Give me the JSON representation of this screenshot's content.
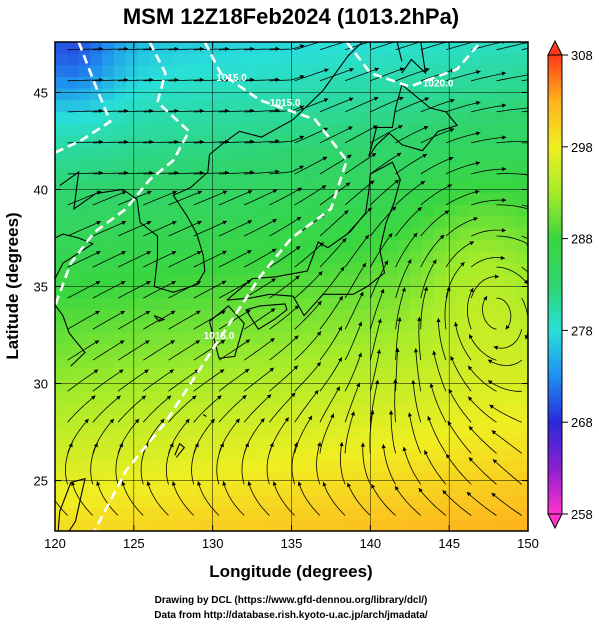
{
  "header": {
    "title": "MSM 12Z18Feb2024 (1013.2hPa)"
  },
  "footer": {
    "credit_line1": "Drawing by DCL (https://www.gfd-dennou.org/library/dcl/)",
    "credit_line2": "Data from http://database.rish.kyoto-u.ac.jp/arch/jmadata/"
  },
  "colors": {
    "contour": "#ffffff",
    "streamline": "#000000",
    "coastline": "#000000",
    "palette": [
      "#ff33cc",
      "#8a1fd0",
      "#2a2ad8",
      "#1f8ef0",
      "#29e0d8",
      "#2fd46e",
      "#3ad640",
      "#a4ec2a",
      "#f0ee22",
      "#ffb21e",
      "#ff3a18"
    ]
  },
  "chart_data": {
    "type": "heatmap",
    "title": "MSM 12Z18Feb2024 (1013.2hPa)",
    "xlabel": "Longitude (degrees)",
    "ylabel": "Latitude  (degrees)",
    "xlim": [
      120,
      150
    ],
    "ylim": [
      22.4,
      47.6
    ],
    "x_ticks": [
      120,
      125,
      130,
      135,
      140,
      145,
      150
    ],
    "x_tick_labels": [
      "120",
      "125",
      "130",
      "135",
      "140",
      "145",
      "150"
    ],
    "y_ticks": [
      25,
      30,
      35,
      40,
      45
    ],
    "y_tick_labels": [
      "25",
      "30",
      "35",
      "40",
      "45"
    ],
    "grid": true,
    "colorbar": {
      "range": [
        258,
        308
      ],
      "ticks": [
        258,
        268,
        278,
        288,
        298,
        308
      ],
      "tick_labels": [
        "258",
        "268",
        "278",
        "288",
        "298",
        "308"
      ],
      "placement": "right"
    },
    "contour_labels": [
      {
        "text": "1015.0",
        "lon": 131.2,
        "lat": 45.6
      },
      {
        "text": "1015.0",
        "lon": 134.6,
        "lat": 44.3
      },
      {
        "text": "1020.0",
        "lon": 144.3,
        "lat": 45.3
      },
      {
        "text": "1015.0",
        "lon": 130.4,
        "lat": 32.3
      }
    ]
  }
}
